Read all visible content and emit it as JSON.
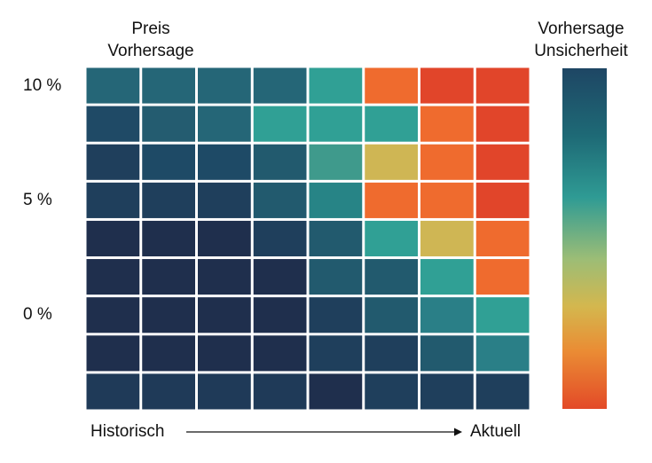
{
  "chart_data": {
    "type": "heatmap",
    "title": [
      "Preis",
      "Vorhersage"
    ],
    "colorbar_label": [
      "Vorhersage",
      "Unsicherheit"
    ],
    "y_ticks": [
      {
        "label": "10 %",
        "row": 0
      },
      {
        "label": "5 %",
        "row": 3
      },
      {
        "label": "0 %",
        "row": 6
      }
    ],
    "x_start_label": "Historisch",
    "x_end_label": "Aktuell",
    "x_direction_arrow": true,
    "colorscale": [
      "#1e4664",
      "#1e6a76",
      "#2f9b94",
      "#9cbd76",
      "#d4b74e",
      "#ea8c34",
      "#e34a28"
    ],
    "colors": [
      [
        "#256677",
        "#256677",
        "#256677",
        "#256677",
        "#30a095",
        "#ef6b2e",
        "#e1452a",
        "#e1452a"
      ],
      [
        "#1f4a66",
        "#245c70",
        "#256677",
        "#30a095",
        "#30a095",
        "#30a095",
        "#ef6b2e",
        "#e1452a"
      ],
      [
        "#1f3f5c",
        "#1e4a66",
        "#1e4a66",
        "#225a6e",
        "#3f9a8c",
        "#cfb654",
        "#ef6b2e",
        "#e1452a"
      ],
      [
        "#1f3f5c",
        "#1f3f5c",
        "#1f3f5c",
        "#225a6e",
        "#278486",
        "#ef6b2e",
        "#ef6b2e",
        "#e1452a"
      ],
      [
        "#1f2f4d",
        "#1f2f4d",
        "#1f2f4d",
        "#1f3f5c",
        "#225a6e",
        "#30a095",
        "#cfb654",
        "#ef6b2e"
      ],
      [
        "#1f2f4d",
        "#1f2f4d",
        "#1f2f4d",
        "#1f2f4d",
        "#225a6e",
        "#225a6e",
        "#30a095",
        "#ef6b2e"
      ],
      [
        "#1f2f4d",
        "#1f2f4d",
        "#1f2f4d",
        "#1f2f4d",
        "#1f3f5c",
        "#225a6e",
        "#2a7f87",
        "#30a095"
      ],
      [
        "#1f2f4d",
        "#1f2f4d",
        "#1f2f4d",
        "#1f2f4d",
        "#1f3f5c",
        "#1f3f5c",
        "#225a6e",
        "#2a7f87"
      ],
      [
        "#1f3a58",
        "#1f3a58",
        "#1f3a58",
        "#1f3a58",
        "#1f2f4d",
        "#1f3f5c",
        "#1f3f5c",
        "#1f3f5c"
      ]
    ]
  }
}
